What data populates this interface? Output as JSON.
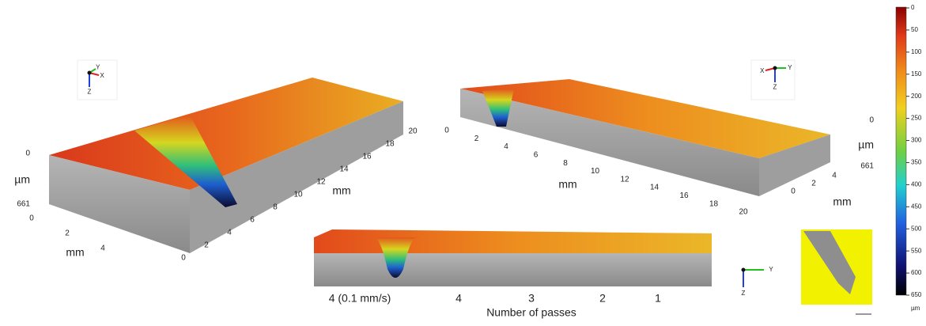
{
  "views": [
    {
      "gizmo": [
        "Y",
        "X",
        "Z"
      ],
      "z_labels": [
        0,
        "µm",
        661
      ],
      "short_axis": {
        "label": "mm",
        "ticks": [
          0,
          2,
          4
        ]
      },
      "long_axis": {
        "label": "mm",
        "ticks": [
          0,
          2,
          4,
          6,
          8,
          10,
          12,
          14,
          16,
          18,
          20
        ]
      }
    },
    {
      "gizmo": [
        "X",
        "Y",
        "Z"
      ],
      "z_labels": [
        0,
        "µm",
        661
      ],
      "short_axis": {
        "label": "mm",
        "ticks": [
          0,
          2,
          4
        ]
      },
      "long_axis": {
        "label": "mm",
        "ticks": [
          0,
          2,
          4,
          6,
          8,
          10,
          12,
          14,
          16,
          18,
          20
        ]
      }
    }
  ],
  "front_view": {
    "gizmo": [
      "Y",
      "Z"
    ],
    "pass_labels": [
      "4 (0.1 mm/s)",
      "4",
      "3",
      "2",
      "1"
    ],
    "xlabel": "Number of passes"
  },
  "colorbar": {
    "ticks": [
      0,
      50,
      100,
      150,
      200,
      250,
      300,
      350,
      400,
      450,
      500,
      550,
      600,
      650
    ],
    "unit": "µm"
  }
}
